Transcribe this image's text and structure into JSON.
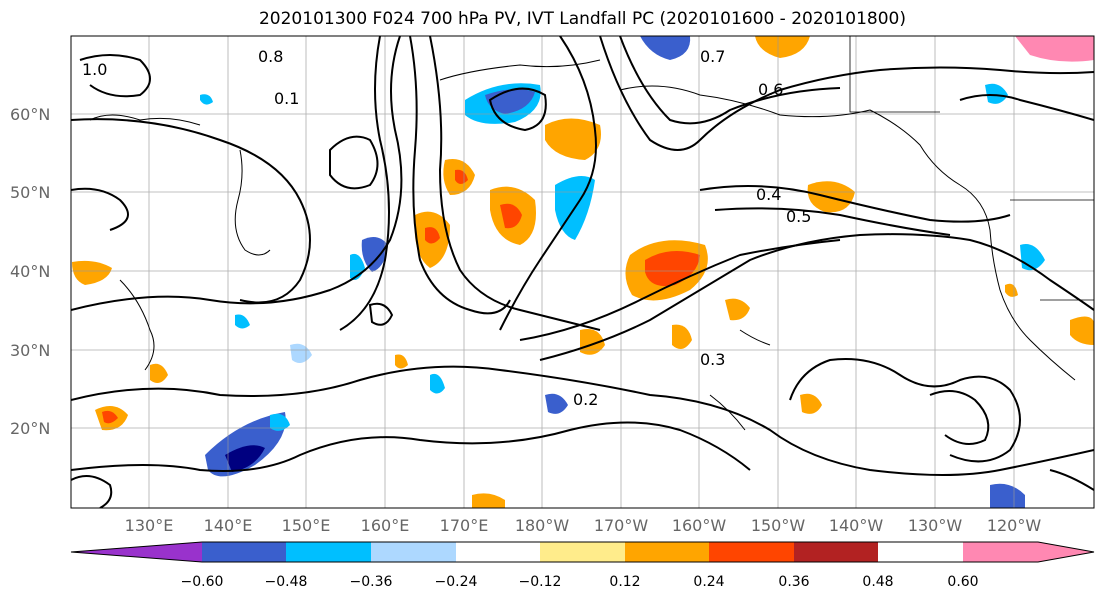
{
  "title": "2020101300 F024 700 hPa PV, IVT Landfall PC (2020101600 - 2020101800)",
  "latitude_labels": [
    "60°N",
    "50°N",
    "40°N",
    "30°N",
    "20°N"
  ],
  "longitude_labels": [
    "130°E",
    "140°E",
    "150°E",
    "160°E",
    "170°E",
    "180°W",
    "170°W",
    "160°W",
    "150°W",
    "140°W",
    "130°W",
    "120°W"
  ],
  "colorbar": {
    "tick_labels": [
      "−0.60",
      "−0.48",
      "−0.36",
      "−0.24",
      "−0.12",
      "0.12",
      "0.24",
      "0.36",
      "0.48",
      "0.60"
    ],
    "colors": [
      "#9932cc",
      "#000080",
      "#3a5fcd",
      "#00bfff",
      "#add8ff",
      "#ffffff",
      "#ffec8b",
      "#ffa500",
      "#ff4500",
      "#b22222",
      "#ff88b2"
    ]
  },
  "contour_labels": [
    "1.0",
    "0.8",
    "0.7",
    "0.6",
    "0.5",
    "0.4",
    "0.3",
    "0.2",
    "0.1"
  ]
}
